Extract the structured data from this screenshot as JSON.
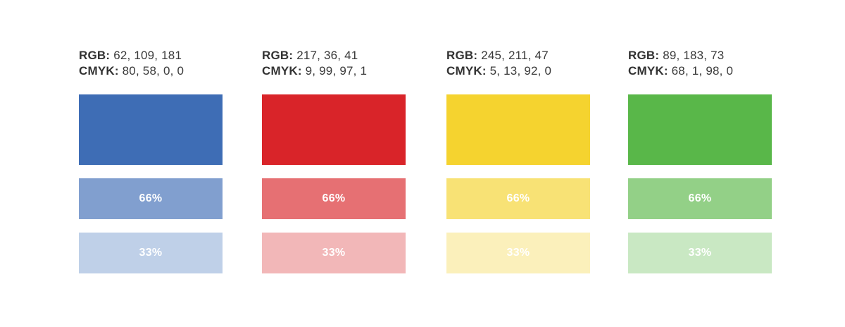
{
  "labels": {
    "rgb_key": "RGB:",
    "cmyk_key": "CMYK:",
    "tint_66": "66%",
    "tint_33": "33%"
  },
  "swatches": [
    {
      "name": "blue",
      "rgb": "62, 109, 181",
      "cmyk": "80, 58, 0, 0",
      "color": "#3e6db5",
      "tint_66_color": "#819fcf",
      "tint_33_color": "#bfd0e8"
    },
    {
      "name": "red",
      "rgb": "217, 36, 41",
      "cmyk": "9, 99, 97, 1",
      "color": "#d92429",
      "tint_66_color": "#e67073",
      "tint_33_color": "#f2b7b8"
    },
    {
      "name": "yellow",
      "rgb": "245, 211, 47",
      "cmyk": "5, 13, 92, 0",
      "color": "#f5d32f",
      "tint_66_color": "#f8e275",
      "tint_33_color": "#fbf0bb"
    },
    {
      "name": "green",
      "rgb": "89, 183, 73",
      "cmyk": "68, 1, 98, 0",
      "color": "#59b749",
      "tint_66_color": "#93d087",
      "tint_33_color": "#c9e8c3"
    }
  ]
}
